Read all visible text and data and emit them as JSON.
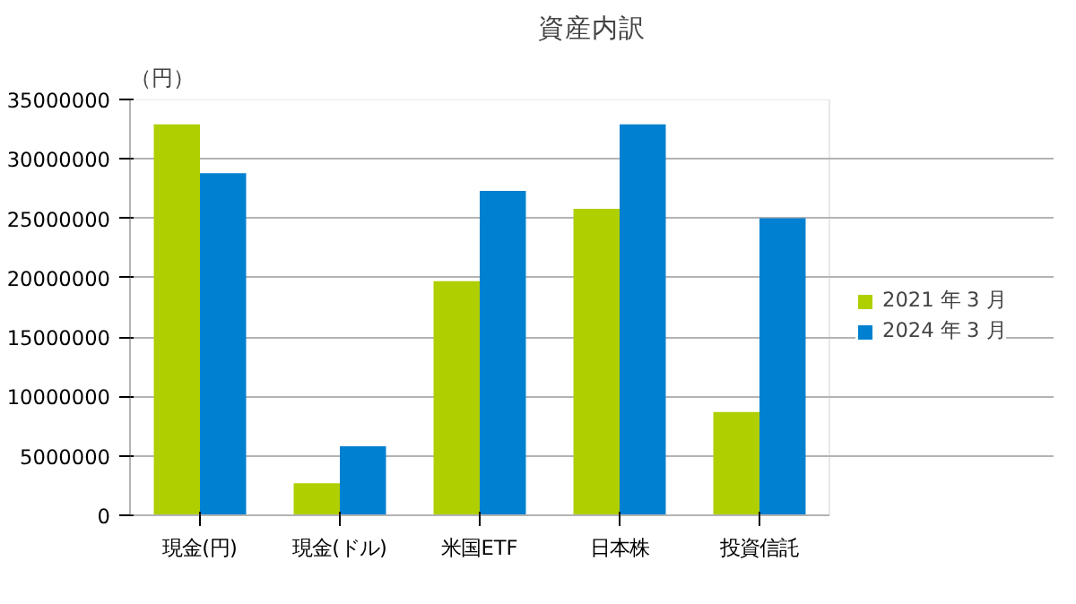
{
  "chart_data": {
    "type": "bar",
    "title": "資産内訳",
    "ylabel": "（円）",
    "categories": [
      "現金(円)",
      "現金(ドル)",
      "米国ETF",
      "日本株",
      "投資信託"
    ],
    "series": [
      {
        "name": "2021 年 3 月",
        "color": "#b0cf00",
        "values": [
          32900000,
          2700000,
          19700000,
          25800000,
          8700000
        ]
      },
      {
        "name": "2024 年 3 月",
        "color": "#0080d0",
        "values": [
          28800000,
          5800000,
          27300000,
          32900000,
          25000000
        ]
      }
    ],
    "ylim": [
      0,
      35000000
    ],
    "yticks": [
      0,
      5000000,
      10000000,
      15000000,
      20000000,
      25000000,
      30000000,
      35000000
    ],
    "grid": "y",
    "legend": "right"
  }
}
